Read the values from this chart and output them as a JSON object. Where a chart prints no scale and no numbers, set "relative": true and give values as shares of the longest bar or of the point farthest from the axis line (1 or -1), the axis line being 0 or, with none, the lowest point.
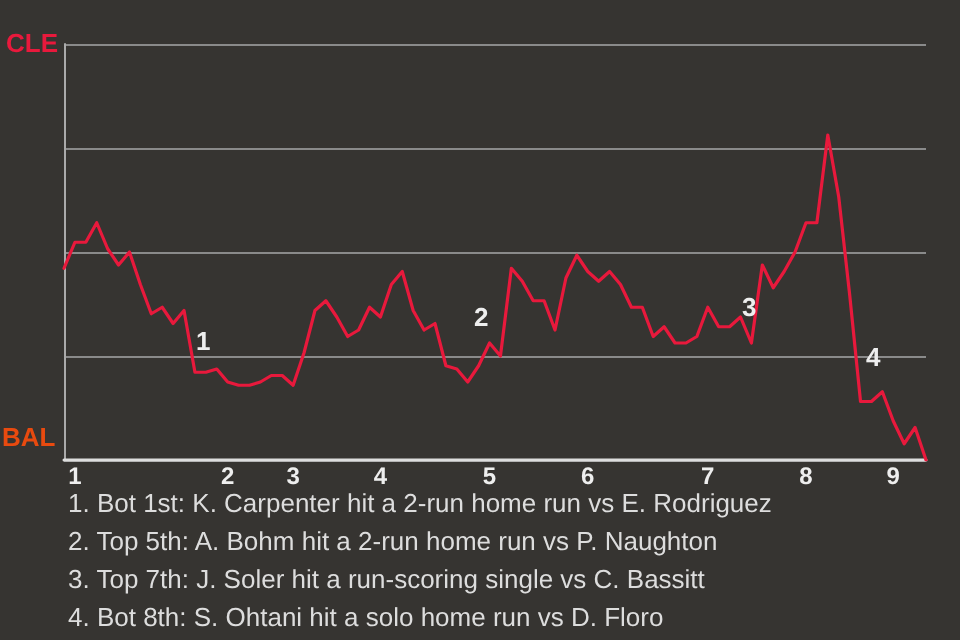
{
  "chart_data": {
    "type": "line",
    "relative": true,
    "categories": [
      null,
      "1",
      null,
      null,
      null,
      null,
      null,
      null,
      null,
      null,
      null,
      null,
      null,
      null,
      null,
      "2",
      null,
      null,
      null,
      null,
      null,
      "3",
      null,
      null,
      null,
      null,
      null,
      null,
      null,
      "4",
      null,
      null,
      null,
      null,
      null,
      null,
      null,
      null,
      null,
      "5",
      null,
      null,
      null,
      null,
      null,
      null,
      null,
      null,
      "6",
      null,
      null,
      null,
      null,
      null,
      null,
      null,
      null,
      null,
      null,
      "7",
      null,
      null,
      null,
      null,
      null,
      null,
      null,
      null,
      "8",
      null,
      null,
      null,
      null,
      null,
      null,
      null,
      "9",
      null,
      null,
      null
    ],
    "series": [
      {
        "color": "#e8193c",
        "values": [
          0.59,
          0.67,
          0.67,
          0.73,
          0.65,
          0.6,
          0.64,
          0.54,
          0.45,
          0.47,
          0.42,
          0.46,
          0.27,
          0.27,
          0.28,
          0.24,
          0.23,
          0.23,
          0.24,
          0.26,
          0.26,
          0.23,
          0.33,
          0.46,
          0.49,
          0.44,
          0.38,
          0.4,
          0.47,
          0.44,
          0.54,
          0.58,
          0.46,
          0.4,
          0.42,
          0.29,
          0.28,
          0.24,
          0.29,
          0.36,
          0.32,
          0.59,
          0.55,
          0.49,
          0.49,
          0.4,
          0.56,
          0.63,
          0.58,
          0.55,
          0.58,
          0.54,
          0.47,
          0.47,
          0.38,
          0.41,
          0.36,
          0.36,
          0.38,
          0.47,
          0.41,
          0.41,
          0.44,
          0.36,
          0.6,
          0.53,
          0.58,
          0.64,
          0.73,
          0.73,
          1,
          0.81,
          0.51,
          0.18,
          0.18,
          0.21,
          0.12,
          0.05,
          0.1,
          0
        ]
      }
    ],
    "grid": "y",
    "marker": "none",
    "line_style": "solid",
    "annotations": [
      "CLE",
      "BAL",
      "1",
      "2",
      "3",
      "4",
      "1. Bot 1st: K. Carpenter hit a 2-run home run vs E. Rodriguez",
      "2. Top 5th: A. Bohm hit a 2-run home run vs P. Naughton",
      "3. Top 7th: J. Soler hit a run-scoring single vs C. Bassitt",
      "4. Bot 8th: S. Ohtani hit a solo home run vs D. Floro"
    ]
  }
}
